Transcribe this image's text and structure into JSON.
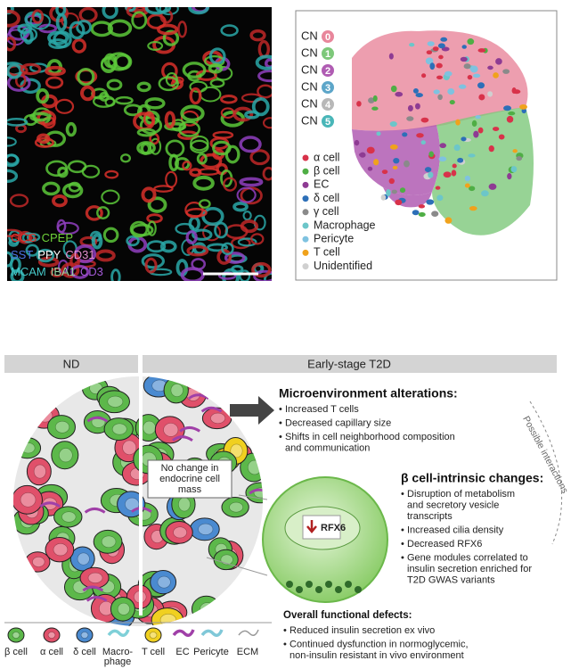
{
  "microscopy": {
    "marker_rows": [
      [
        {
          "text": "GCG",
          "color": "#e8302a"
        },
        {
          "text": "CPEP",
          "color": "#6fd23a"
        }
      ],
      [
        {
          "text": "SST",
          "color": "#4a72e0"
        },
        {
          "text": "PPY",
          "color": "#ffffff"
        },
        {
          "text": "CD31",
          "color": "#e58fd0"
        }
      ],
      [
        {
          "text": "MCAM",
          "color": "#46c8c8"
        },
        {
          "text": "IBA1",
          "color": "#9ad0a0"
        },
        {
          "text": "CD3",
          "color": "#a55ad8"
        }
      ]
    ]
  },
  "cn_map": {
    "neighborhoods": [
      {
        "label": "CN",
        "number": "0",
        "color": "#e8869b"
      },
      {
        "label": "CN",
        "number": "1",
        "color": "#7dc87a"
      },
      {
        "label": "CN",
        "number": "2",
        "color": "#b05cb3"
      },
      {
        "label": "CN",
        "number": "3",
        "color": "#5da6c9"
      },
      {
        "label": "CN",
        "number": "4",
        "color": "#b8b8b8"
      },
      {
        "label": "CN",
        "number": "5",
        "color": "#49b6b8"
      }
    ],
    "cell_types": [
      {
        "name": "α cell",
        "color": "#d8324a"
      },
      {
        "name": "β cell",
        "color": "#4fae45"
      },
      {
        "name": "EC",
        "color": "#8e3b93"
      },
      {
        "name": "δ cell",
        "color": "#2d6fb8"
      },
      {
        "name": "γ cell",
        "color": "#8a8a8a"
      },
      {
        "name": "Macrophage",
        "color": "#6cc6c9"
      },
      {
        "name": "Pericyte",
        "color": "#7fc2e0"
      },
      {
        "name": "T cell",
        "color": "#f0a21c"
      },
      {
        "name": "Unidentified",
        "color": "#d0d0d0"
      }
    ]
  },
  "schematic": {
    "headers": {
      "nd": "ND",
      "t2d": "Early-stage T2D"
    },
    "callout": [
      "No change in",
      "endocrine cell",
      "mass"
    ],
    "gene": "RFX6",
    "microenvironment": {
      "title": "Microenvironment alterations:",
      "items": [
        [
          "Increased T cells"
        ],
        [
          "Decreased capillary size"
        ],
        [
          "Shifts in cell neighborhood composition",
          "and communication"
        ]
      ]
    },
    "beta_changes": {
      "title": "β cell-intrinsic changes:",
      "items": [
        [
          "Disruption of metabolism",
          "and secretory vesicle",
          "transcripts"
        ],
        [
          "Increased cilia density"
        ],
        [
          "Decreased RFX6"
        ],
        [
          "Gene modules correlated to",
          "insulin secretion enriched for",
          "T2D GWAS variants"
        ]
      ]
    },
    "interactions": "Possible interactions",
    "functional": {
      "title": "Overall functional defects:",
      "items": [
        [
          "Reduced insulin secretion ex vivo"
        ],
        [
          "Continued dysfunction in normoglycemic,",
          "non-insulin resistant in vivo environment"
        ]
      ]
    },
    "legend": [
      {
        "label": [
          "β cell"
        ],
        "color": "#5cb84a"
      },
      {
        "label": [
          "α cell"
        ],
        "color": "#e0506a"
      },
      {
        "label": [
          "δ cell"
        ],
        "color": "#4a8ad0"
      },
      {
        "label": [
          "Macro-",
          "phage"
        ],
        "color": "#7fd0d8"
      },
      {
        "label": [
          "T cell"
        ],
        "color": "#f0d020"
      },
      {
        "label": [
          "EC"
        ],
        "color": "#a040a8"
      },
      {
        "label": [
          "Pericyte"
        ],
        "color": "#80c8d8"
      },
      {
        "label": [
          "ECM"
        ],
        "color": "#999999"
      }
    ]
  }
}
